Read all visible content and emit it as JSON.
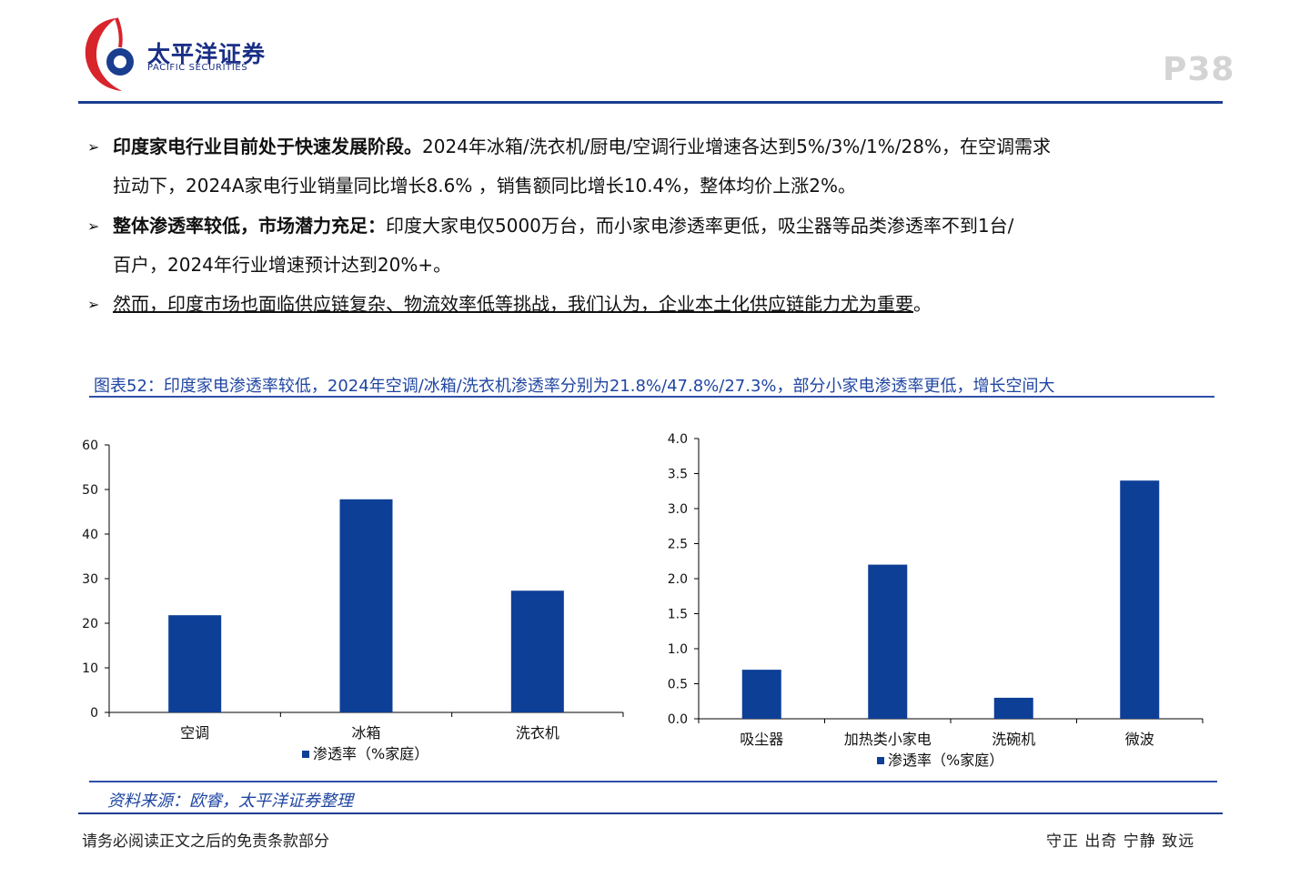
{
  "header": {
    "brand_cn": "太平洋证券",
    "brand_en": "PACIFIC SECURITIES",
    "page_number": "P38"
  },
  "bullets": [
    {
      "bold": "印度家电行业目前处于快速发展阶段。",
      "line1": "2024年冰箱/洗衣机/厨电/空调行业增速各达到5%/3%/1%/28%，在空调需求",
      "line2": "拉动下，2024A家电行业销量同比增长8.6% ，销售额同比增长10.4%，整体均价上涨2%。"
    },
    {
      "bold": "整体渗透率较低，市场潜力充足：",
      "line1": "印度大家电仅5000万台，而小家电渗透率更低，吸尘器等品类渗透率不到1台/",
      "line2": "百户，2024年行业增速预计达到20%+。"
    },
    {
      "underlined": "然而，印度市场也面临供应链复杂、物流效率低等挑战，我们认为，企业本土化供应链能力尤为重要",
      "tail": "。"
    }
  ],
  "figure": {
    "caption": "图表52：印度家电渗透率较低，2024年空调/冰箱/洗衣机渗透率分别为21.8%/47.8%/27.3%，部分小家电渗透率更低，增长空间大",
    "source": "资料来源：欧睿，太平洋证券整理"
  },
  "chart_data": [
    {
      "type": "bar",
      "categories": [
        "空调",
        "冰箱",
        "洗衣机"
      ],
      "series": [
        {
          "name": "渗透率（%家庭）",
          "values": [
            21.8,
            47.8,
            27.3
          ]
        }
      ],
      "ylim": [
        0,
        60
      ],
      "yticks": [
        "0",
        "10",
        "20",
        "30",
        "40",
        "50",
        "60"
      ],
      "legend": "bottom",
      "grid": false,
      "color": "#0d3f97"
    },
    {
      "type": "bar",
      "categories": [
        "吸尘器",
        "加热类小家电",
        "洗碗机",
        "微波"
      ],
      "series": [
        {
          "name": "渗透率（%家庭）",
          "values": [
            0.7,
            2.2,
            0.3,
            3.4
          ]
        }
      ],
      "ylim": [
        0,
        4
      ],
      "yticks": [
        "0.0",
        "0.5",
        "1.0",
        "1.5",
        "2.0",
        "2.5",
        "3.0",
        "3.5",
        "4.0"
      ],
      "legend": "bottom",
      "grid": false,
      "color": "#0d3f97"
    }
  ],
  "footer": {
    "disclaimer": "请务必阅读正文之后的免责条款部分",
    "motto": "守正 出奇 宁静 致远"
  }
}
